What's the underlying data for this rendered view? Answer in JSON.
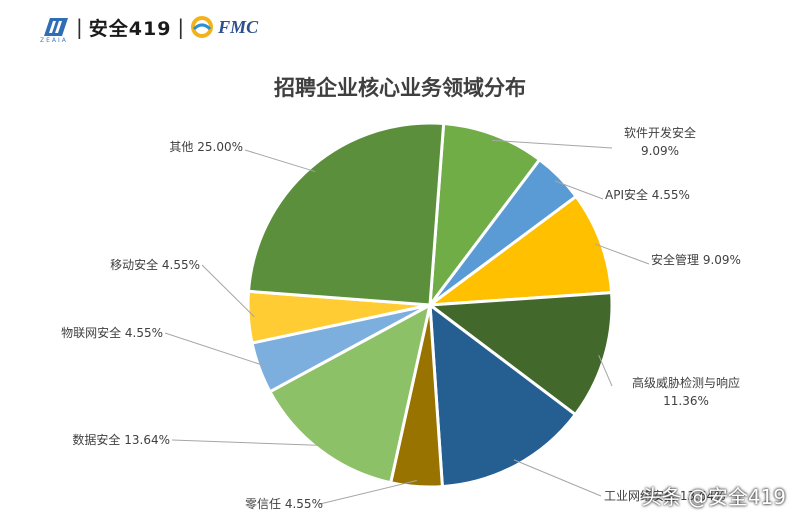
{
  "header": {
    "logo_caption": "ZEAIA",
    "separator": "|",
    "brand": "安全419",
    "partner": "FMC"
  },
  "chart_data": {
    "type": "pie",
    "title": "招聘企业核心业务领域分布",
    "slices": [
      {
        "label": "软件开发安全",
        "pct_text": "9.09%",
        "value": 9.09,
        "color": "#70ad47"
      },
      {
        "label": "API安全",
        "pct_text": "4.55%",
        "value": 4.55,
        "color": "#5b9bd5"
      },
      {
        "label": "安全管理",
        "pct_text": "9.09%",
        "value": 9.09,
        "color": "#ffc000"
      },
      {
        "label": "高级威胁检测与响应",
        "pct_text": "11.36%",
        "value": 11.36,
        "color": "#43682b"
      },
      {
        "label": "工业网络安全",
        "pct_text": "13.64%",
        "value": 13.64,
        "color": "#255e91"
      },
      {
        "label": "零信任",
        "pct_text": "4.55%",
        "value": 4.55,
        "color": "#997300"
      },
      {
        "label": "数据安全",
        "pct_text": "13.64%",
        "value": 13.64,
        "color": "#8cc168"
      },
      {
        "label": "物联网安全",
        "pct_text": "4.55%",
        "value": 4.55,
        "color": "#7cafdd"
      },
      {
        "label": "移动安全",
        "pct_text": "4.55%",
        "value": 4.55,
        "color": "#ffcd33"
      },
      {
        "label": "其他",
        "pct_text": "25.00%",
        "value": 25.0,
        "color": "#5b8f3c"
      }
    ]
  },
  "watermark": "头条 @安全419"
}
